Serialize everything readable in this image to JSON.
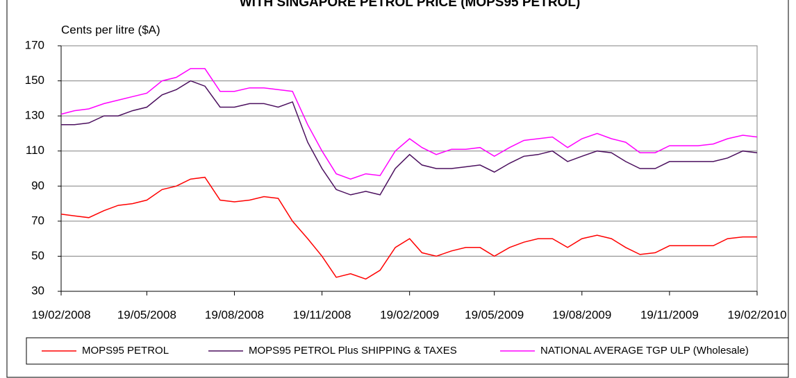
{
  "chart_data": {
    "type": "line",
    "title": "WITH SINGAPORE PETROL PRICE (MOPS95 PETROL)",
    "y_label": "Cents per litre ($A)",
    "x": [
      "19/02/2008",
      "04/03/2008",
      "19/03/2008",
      "04/04/2008",
      "19/04/2008",
      "04/05/2008",
      "19/05/2008",
      "04/06/2008",
      "19/06/2008",
      "04/07/2008",
      "19/07/2008",
      "04/08/2008",
      "19/08/2008",
      "04/09/2008",
      "19/09/2008",
      "04/10/2008",
      "19/10/2008",
      "04/11/2008",
      "19/11/2008",
      "04/12/2008",
      "19/12/2008",
      "04/01/2009",
      "19/01/2009",
      "04/02/2009",
      "19/02/2009",
      "04/03/2009",
      "19/03/2009",
      "04/04/2009",
      "19/04/2009",
      "04/05/2009",
      "19/05/2009",
      "04/06/2009",
      "19/06/2009",
      "04/07/2009",
      "19/07/2009",
      "04/08/2009",
      "19/08/2009",
      "04/09/2009",
      "19/09/2009",
      "04/10/2009",
      "19/10/2009",
      "04/11/2009",
      "19/11/2009",
      "04/12/2009",
      "19/12/2009",
      "04/01/2010",
      "19/01/2010",
      "04/02/2010",
      "19/02/2010"
    ],
    "series": [
      {
        "name": "MOPS95 PETROL",
        "color": "#ff0000",
        "values": [
          74,
          73,
          72,
          76,
          79,
          80,
          82,
          88,
          90,
          94,
          95,
          82,
          81,
          82,
          84,
          83,
          70,
          60,
          50,
          38,
          40,
          37,
          42,
          55,
          60,
          52,
          50,
          53,
          55,
          55,
          50,
          55,
          58,
          60,
          60,
          55,
          60,
          62,
          60,
          55,
          51,
          52,
          56,
          56,
          56,
          56,
          60,
          61,
          61
        ]
      },
      {
        "name": "MOPS95 PETROL Plus SHIPPING & TAXES",
        "color": "#4b0f5e",
        "values": [
          125,
          125,
          126,
          130,
          130,
          133,
          135,
          142,
          145,
          150,
          147,
          135,
          135,
          137,
          137,
          135,
          138,
          115,
          100,
          88,
          85,
          87,
          85,
          100,
          108,
          102,
          100,
          100,
          101,
          102,
          98,
          103,
          107,
          108,
          110,
          104,
          107,
          110,
          109,
          104,
          100,
          100,
          104,
          104,
          104,
          104,
          106,
          110,
          109
        ]
      },
      {
        "name": "NATIONAL AVERAGE TGP ULP (Wholesale)",
        "color": "#ff00ff",
        "values": [
          131,
          133,
          134,
          137,
          139,
          141,
          143,
          150,
          152,
          157,
          157,
          144,
          144,
          146,
          146,
          145,
          144,
          125,
          110,
          97,
          94,
          97,
          96,
          110,
          117,
          112,
          108,
          111,
          111,
          112,
          107,
          112,
          116,
          117,
          118,
          112,
          117,
          120,
          117,
          115,
          109,
          109,
          113,
          113,
          113,
          114,
          117,
          119,
          118
        ]
      }
    ],
    "xlim": [
      "19/02/2008",
      "19/02/2010"
    ],
    "xticks": [
      "19/02/2008",
      "19/05/2008",
      "19/08/2008",
      "19/11/2008",
      "19/02/2009",
      "19/05/2009",
      "19/08/2009",
      "19/11/2009",
      "19/02/2010"
    ],
    "ylim": [
      30,
      170
    ],
    "yticks": [
      30,
      50,
      70,
      90,
      110,
      130,
      150,
      170
    ],
    "grid": true,
    "legend": "bottom"
  }
}
